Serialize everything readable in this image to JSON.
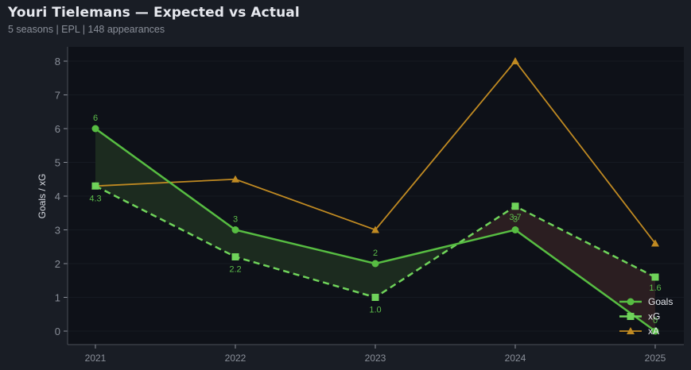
{
  "header": {
    "title": "Youri Tielemans — Expected vs Actual",
    "subtitle": "5 seasons | EPL | 148 appearances"
  },
  "colors": {
    "goals": "#57bd42",
    "xg": "#6fd35a",
    "xa": "#c08a22",
    "over_fill": "#1c2b1f",
    "under_fill": "#2b1e21",
    "plot_bg": "#0e1118",
    "page_bg": "#191d25"
  },
  "chart_data": {
    "type": "line",
    "title": "Youri Tielemans — Expected vs Actual",
    "subtitle": "5 seasons | EPL | 148 appearances",
    "xlabel": "",
    "ylabel": "Goals / xG",
    "categories": [
      "2021",
      "2022",
      "2023",
      "2024",
      "2025"
    ],
    "ylim": [
      -0.4,
      8.4
    ],
    "yticks": [
      0,
      1,
      2,
      3,
      4,
      5,
      6,
      7,
      8
    ],
    "grid": true,
    "legend_position": "lower right",
    "series": [
      {
        "name": "Goals",
        "marker": "circle",
        "style": "solid",
        "values": [
          6,
          3,
          2,
          3,
          0
        ],
        "labels": [
          "6",
          "3",
          "2",
          "3",
          "0"
        ]
      },
      {
        "name": "xG",
        "marker": "square",
        "style": "dashed",
        "values": [
          4.3,
          2.2,
          1.0,
          3.7,
          1.6
        ],
        "labels": [
          "4.3",
          "2.2",
          "1.0",
          "3.7",
          "1.6"
        ]
      },
      {
        "name": "xA",
        "marker": "triangle",
        "style": "solid",
        "values": [
          4.3,
          4.5,
          3.0,
          8.0,
          2.6
        ]
      }
    ],
    "annotations": [
      "Green shaded area where Goals > xG",
      "Red shaded area where Goals < xG"
    ]
  },
  "legend": {
    "items": [
      {
        "label": "Goals"
      },
      {
        "label": "xG"
      },
      {
        "label": "xA"
      }
    ]
  }
}
